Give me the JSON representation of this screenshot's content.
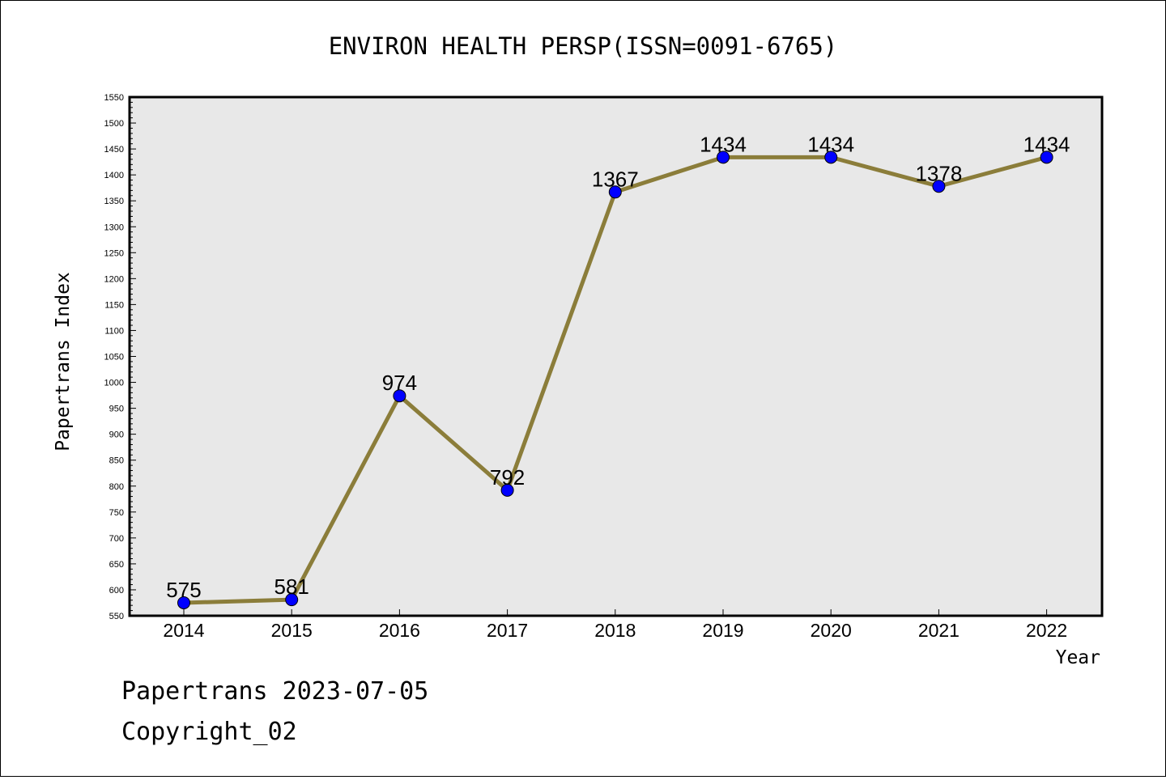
{
  "chart_data": {
    "type": "line",
    "title": "ENVIRON HEALTH PERSP(ISSN=0091-6765)",
    "xlabel": "Year",
    "ylabel": "Papertrans Index",
    "x": [
      "2014",
      "2015",
      "2016",
      "2017",
      "2018",
      "2019",
      "2020",
      "2021",
      "2022"
    ],
    "series": [
      {
        "values": [
          575,
          581,
          974,
          792,
          1367,
          1434,
          1434,
          1378,
          1434
        ]
      }
    ],
    "data_labels": [
      "575",
      "581",
      "974",
      "792",
      "1367",
      "1434",
      "1434",
      "1378",
      "1434"
    ],
    "ylim": [
      550,
      1550
    ],
    "yticks": [
      "550",
      "600",
      "650",
      "700",
      "750",
      "800",
      "850",
      "900",
      "950",
      "1000",
      "1050",
      "1100",
      "1150",
      "1200",
      "1250",
      "1300",
      "1350",
      "1400",
      "1450",
      "1500",
      "1550"
    ],
    "grid": false,
    "line_color": "#8b7d3a",
    "marker_color": "#0000ff",
    "plot_background": "#e8e8e8"
  },
  "footer": {
    "line1": "Papertrans 2023-07-05",
    "line2": "Copyright_02"
  }
}
